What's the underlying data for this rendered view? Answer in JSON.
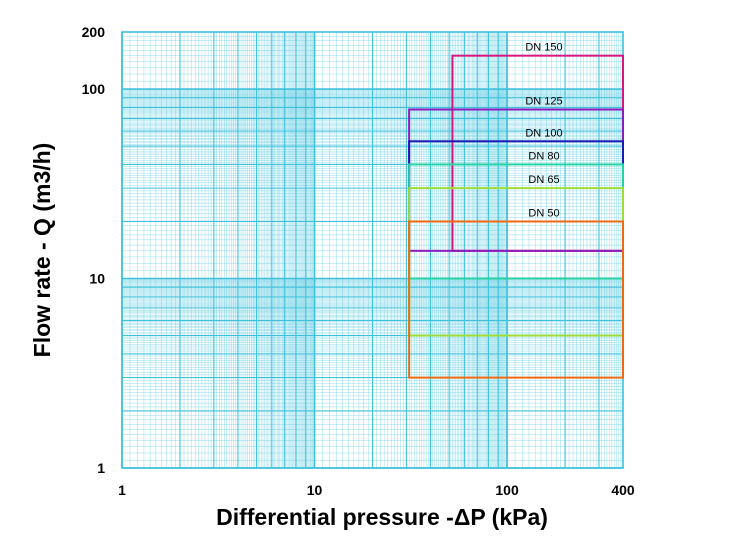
{
  "chart_data": {
    "type": "line",
    "title": "",
    "xlabel": "Differential pressure -ΔP (kPa)",
    "ylabel": "Flow rate - Q (m3/h)",
    "x_scale": "log",
    "y_scale": "log",
    "xlim": [
      1,
      400
    ],
    "ylim": [
      1,
      200
    ],
    "grid": true,
    "x_ticks": [
      {
        "value": 1,
        "label": "1"
      },
      {
        "value": 10,
        "label": "10"
      },
      {
        "value": 100,
        "label": "100"
      },
      {
        "value": 400,
        "label": "400"
      }
    ],
    "y_ticks": [
      {
        "value": 1,
        "label": "1"
      },
      {
        "value": 10,
        "label": "10"
      },
      {
        "value": 100,
        "label": "100"
      },
      {
        "value": 200,
        "label": "200"
      }
    ],
    "colors": {
      "grid": "#3fc1dc",
      "axis_text": "#000000"
    },
    "series": [
      {
        "name": "DN 150",
        "color": "#d6177f",
        "dp_min": 52,
        "dp_max": 400,
        "q_min": 14,
        "q_max": 150
      },
      {
        "name": "DN 125",
        "color": "#8e1bbd",
        "dp_min": 31,
        "dp_max": 400,
        "q_min": 14,
        "q_max": 78
      },
      {
        "name": "DN 100",
        "color": "#1a1ab4",
        "dp_min": 31,
        "dp_max": 400,
        "q_min": 10,
        "q_max": 53
      },
      {
        "name": "DN 80",
        "color": "#23d3a1",
        "dp_min": 31,
        "dp_max": 400,
        "q_min": 10,
        "q_max": 40
      },
      {
        "name": "DN 65",
        "color": "#9fdc35",
        "dp_min": 31,
        "dp_max": 400,
        "q_min": 5,
        "q_max": 30
      },
      {
        "name": "DN 50",
        "color": "#ee6a12",
        "dp_min": 31,
        "dp_max": 400,
        "q_min": 3,
        "q_max": 20
      }
    ]
  }
}
